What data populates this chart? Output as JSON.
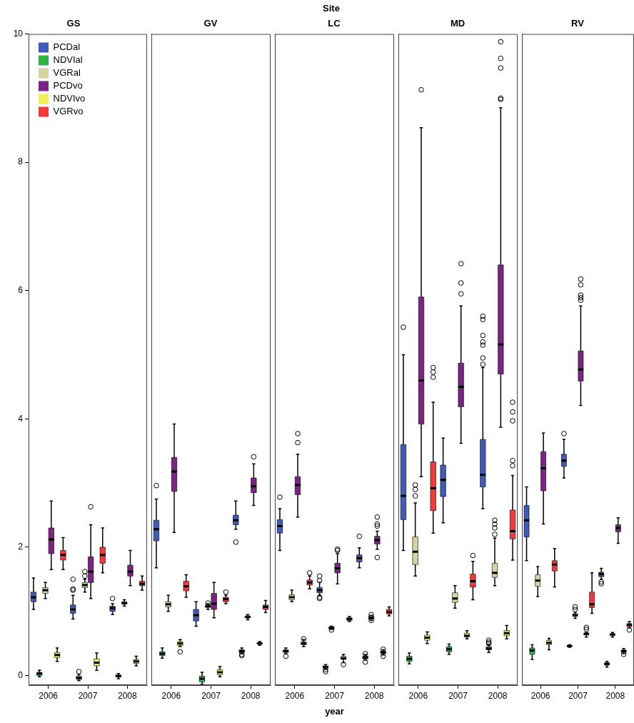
{
  "chart_data": [
    {
      "type": "box",
      "title": "GS",
      "annotations": [
        "Site"
      ],
      "categories": [
        "2006",
        "2007",
        "2008"
      ],
      "ylim": [
        -0.15,
        10
      ],
      "yticks": [
        0,
        2,
        4,
        6,
        8,
        10
      ],
      "legend": "top left",
      "grid": false,
      "series": [
        {
          "name": "PCDal",
          "color": "#3f5bb5",
          "boxes": [
            {
              "low": 1.03,
              "q1": 1.15,
              "median": 1.22,
              "q3": 1.3,
              "high": 1.52
            },
            {
              "low": 0.88,
              "q1": 0.97,
              "median": 1.03,
              "q3": 1.1,
              "high": 1.25,
              "outliers": [
                1.33,
                1.35,
                1.5
              ]
            },
            {
              "low": 0.95,
              "q1": 1.0,
              "median": 1.05,
              "q3": 1.08,
              "high": 1.12,
              "outliers": [
                1.2
              ]
            }
          ]
        },
        {
          "name": "NDVIal",
          "color": "#2eb34b",
          "boxes": [
            {
              "low": -0.02,
              "q1": 0.0,
              "median": 0.03,
              "q3": 0.05,
              "high": 0.08
            },
            {
              "low": -0.08,
              "q1": -0.06,
              "median": -0.04,
              "q3": -0.01,
              "high": 0.02,
              "outliers": [
                0.06
              ]
            },
            {
              "low": -0.05,
              "q1": -0.02,
              "median": -0.01,
              "q3": 0.01,
              "high": 0.03
            }
          ]
        },
        {
          "name": "VGRal",
          "color": "#d8d2a0",
          "boxes": [
            {
              "low": 1.2,
              "q1": 1.28,
              "median": 1.33,
              "q3": 1.37,
              "high": 1.45
            },
            {
              "low": 1.3,
              "q1": 1.37,
              "median": 1.41,
              "q3": 1.45,
              "high": 1.5,
              "outliers": [
                1.55,
                1.62
              ]
            },
            {
              "low": 1.08,
              "q1": 1.11,
              "median": 1.13,
              "q3": 1.15,
              "high": 1.18
            }
          ]
        },
        {
          "name": "PCDvo",
          "color": "#7b2582",
          "boxes": [
            {
              "low": 1.65,
              "q1": 1.9,
              "median": 2.12,
              "q3": 2.3,
              "high": 2.72
            },
            {
              "low": 1.2,
              "q1": 1.45,
              "median": 1.62,
              "q3": 1.85,
              "high": 2.35,
              "outliers": [
                2.63
              ]
            },
            {
              "low": 1.4,
              "q1": 1.55,
              "median": 1.62,
              "q3": 1.72,
              "high": 1.95
            }
          ]
        },
        {
          "name": "NDVIvo",
          "color": "#f3ee5c",
          "boxes": [
            {
              "low": 0.22,
              "q1": 0.28,
              "median": 0.32,
              "q3": 0.36,
              "high": 0.43
            },
            {
              "low": 0.08,
              "q1": 0.15,
              "median": 0.2,
              "q3": 0.26,
              "high": 0.35
            },
            {
              "low": 0.15,
              "q1": 0.19,
              "median": 0.22,
              "q3": 0.25,
              "high": 0.3
            }
          ]
        },
        {
          "name": "VGRvo",
          "color": "#f03b3b",
          "boxes": [
            {
              "low": 1.65,
              "q1": 1.8,
              "median": 1.88,
              "q3": 1.95,
              "high": 2.15
            },
            {
              "low": 1.6,
              "q1": 1.75,
              "median": 1.88,
              "q3": 2.0,
              "high": 2.3
            },
            {
              "low": 1.33,
              "q1": 1.4,
              "median": 1.43,
              "q3": 1.47,
              "high": 1.55
            }
          ]
        }
      ]
    },
    {
      "type": "box",
      "title": "GV",
      "categories": [
        "2006",
        "2007",
        "2008"
      ],
      "ylim": [
        -0.15,
        10
      ],
      "tick_labels": "x",
      "grid": false,
      "series": [
        {
          "color": "#3f5bb5",
          "boxes": [
            {
              "low": 1.68,
              "q1": 2.1,
              "median": 2.28,
              "q3": 2.42,
              "high": 2.75,
              "outliers": [
                2.96
              ]
            },
            {
              "low": 0.77,
              "q1": 0.85,
              "median": 0.94,
              "q3": 1.03,
              "high": 1.15
            },
            {
              "low": 2.28,
              "q1": 2.35,
              "median": 2.42,
              "q3": 2.5,
              "high": 2.72,
              "outliers": [
                2.08
              ]
            }
          ]
        },
        {
          "color": "#2eb34b",
          "boxes": [
            {
              "low": 0.27,
              "q1": 0.31,
              "median": 0.34,
              "q3": 0.37,
              "high": 0.43
            },
            {
              "low": -0.14,
              "q1": -0.1,
              "median": -0.05,
              "q3": -0.01,
              "high": 0.05
            },
            {
              "low": 0.34,
              "q1": 0.36,
              "median": 0.38,
              "q3": 0.4,
              "high": 0.43,
              "outliers": [
                0.31,
                0.33
              ]
            }
          ]
        },
        {
          "color": "#d8d2a0",
          "boxes": [
            {
              "low": 1.0,
              "q1": 1.07,
              "median": 1.11,
              "q3": 1.15,
              "high": 1.25
            },
            {
              "low": 1.03,
              "q1": 1.06,
              "median": 1.08,
              "q3": 1.1,
              "high": 1.12,
              "outliers": [
                1.13
              ]
            },
            {
              "low": 0.87,
              "q1": 0.9,
              "median": 0.91,
              "q3": 0.93,
              "high": 0.95
            }
          ]
        },
        {
          "color": "#7b2582",
          "boxes": [
            {
              "low": 2.23,
              "q1": 2.87,
              "median": 3.18,
              "q3": 3.4,
              "high": 3.92
            },
            {
              "low": 0.9,
              "q1": 1.03,
              "median": 1.12,
              "q3": 1.28,
              "high": 1.45
            },
            {
              "low": 2.65,
              "q1": 2.85,
              "median": 2.95,
              "q3": 3.08,
              "high": 3.3,
              "outliers": [
                3.41
              ]
            }
          ]
        },
        {
          "color": "#f3ee5c",
          "boxes": [
            {
              "low": 0.45,
              "q1": 0.47,
              "median": 0.5,
              "q3": 0.53,
              "high": 0.56,
              "outliers": [
                0.37
              ]
            },
            {
              "low": -0.02,
              "q1": 0.01,
              "median": 0.05,
              "q3": 0.09,
              "high": 0.14
            },
            {
              "low": 0.47,
              "q1": 0.49,
              "median": 0.5,
              "q3": 0.51,
              "high": 0.53
            }
          ]
        },
        {
          "color": "#f03b3b",
          "boxes": [
            {
              "low": 1.22,
              "q1": 1.32,
              "median": 1.39,
              "q3": 1.47,
              "high": 1.57
            },
            {
              "low": 1.12,
              "q1": 1.15,
              "median": 1.19,
              "q3": 1.22,
              "high": 1.25,
              "outliers": [
                1.3
              ]
            },
            {
              "low": 0.98,
              "q1": 1.03,
              "median": 1.07,
              "q3": 1.1,
              "high": 1.17
            }
          ]
        }
      ]
    },
    {
      "type": "box",
      "title": "LC",
      "xlabel": "year",
      "categories": [
        "2006",
        "2007",
        "2008"
      ],
      "ylim": [
        -0.15,
        10
      ],
      "tick_labels": "x",
      "grid": false,
      "series": [
        {
          "color": "#3f5bb5",
          "boxes": [
            {
              "low": 1.95,
              "q1": 2.22,
              "median": 2.33,
              "q3": 2.43,
              "high": 2.6,
              "outliers": [
                2.78
              ]
            },
            {
              "low": 1.25,
              "q1": 1.29,
              "median": 1.33,
              "q3": 1.37,
              "high": 1.45,
              "outliers": [
                1.2,
                1.22,
                1.48,
                1.55
              ]
            },
            {
              "low": 1.68,
              "q1": 1.77,
              "median": 1.83,
              "q3": 1.88,
              "high": 1.99,
              "outliers": [
                2.17
              ]
            }
          ]
        },
        {
          "color": "#2eb34b",
          "boxes": [
            {
              "low": 0.34,
              "q1": 0.36,
              "median": 0.38,
              "q3": 0.4,
              "high": 0.43,
              "outliers": [
                0.3
              ]
            },
            {
              "low": 0.1,
              "q1": 0.12,
              "median": 0.13,
              "q3": 0.15,
              "high": 0.17,
              "outliers": [
                0.06,
                0.09
              ]
            },
            {
              "low": 0.24,
              "q1": 0.26,
              "median": 0.28,
              "q3": 0.3,
              "high": 0.33,
              "outliers": [
                0.21,
                0.34
              ]
            }
          ]
        },
        {
          "color": "#d8d2a0",
          "boxes": [
            {
              "low": 1.15,
              "q1": 1.18,
              "median": 1.22,
              "q3": 1.26,
              "high": 1.33
            },
            {
              "low": 0.72,
              "q1": 0.73,
              "median": 0.74,
              "q3": 0.76,
              "high": 0.77,
              "outliers": [
                0.71
              ]
            },
            {
              "low": 0.86,
              "q1": 0.88,
              "median": 0.9,
              "q3": 0.93,
              "high": 0.94,
              "outliers": [
                0.86,
                0.95
              ]
            }
          ]
        },
        {
          "color": "#7b2582",
          "boxes": [
            {
              "low": 2.47,
              "q1": 2.82,
              "median": 2.97,
              "q3": 3.1,
              "high": 3.45,
              "outliers": [
                3.63,
                3.77
              ]
            },
            {
              "low": 1.43,
              "q1": 1.6,
              "median": 1.67,
              "q3": 1.75,
              "high": 1.9,
              "outliers": [
                1.95,
                1.97
              ]
            },
            {
              "low": 1.97,
              "q1": 2.05,
              "median": 2.11,
              "q3": 2.17,
              "high": 2.25,
              "outliers": [
                1.84,
                2.33,
                2.36,
                2.47
              ]
            }
          ]
        },
        {
          "color": "#f3ee5c",
          "boxes": [
            {
              "low": 0.45,
              "q1": 0.48,
              "median": 0.5,
              "q3": 0.52,
              "high": 0.56,
              "outliers": [
                0.57
              ]
            },
            {
              "low": 0.2,
              "q1": 0.25,
              "median": 0.27,
              "q3": 0.3,
              "high": 0.33,
              "outliers": [
                0.17
              ]
            },
            {
              "low": 0.32,
              "q1": 0.34,
              "median": 0.36,
              "q3": 0.38,
              "high": 0.4,
              "outliers": [
                0.3,
                0.41
              ]
            }
          ]
        },
        {
          "color": "#f03b3b",
          "boxes": [
            {
              "low": 1.35,
              "q1": 1.41,
              "median": 1.45,
              "q3": 1.49,
              "high": 1.55,
              "outliers": [
                1.6
              ]
            },
            {
              "low": 0.84,
              "q1": 0.86,
              "median": 0.88,
              "q3": 0.9,
              "high": 0.92
            },
            {
              "low": 0.93,
              "q1": 0.96,
              "median": 0.99,
              "q3": 1.03,
              "high": 1.07
            }
          ]
        }
      ]
    },
    {
      "type": "box",
      "title": "MD",
      "categories": [
        "2006",
        "2007",
        "2008"
      ],
      "ylim": [
        -0.15,
        10
      ],
      "tick_labels": "x",
      "grid": false,
      "series": [
        {
          "color": "#3f5bb5",
          "boxes": [
            {
              "low": 1.95,
              "q1": 2.43,
              "median": 2.8,
              "q3": 3.6,
              "high": 5.0,
              "outliers": [
                5.43
              ]
            },
            {
              "low": 2.38,
              "q1": 2.79,
              "median": 3.05,
              "q3": 3.28,
              "high": 3.7
            },
            {
              "low": 2.6,
              "q1": 2.94,
              "median": 3.13,
              "q3": 3.68,
              "high": 4.8,
              "outliers": [
                4.85,
                4.95,
                5.15,
                5.2,
                5.3,
                5.55,
                5.6
              ]
            }
          ]
        },
        {
          "color": "#2eb34b",
          "boxes": [
            {
              "low": 0.18,
              "q1": 0.22,
              "median": 0.26,
              "q3": 0.3,
              "high": 0.35
            },
            {
              "low": 0.33,
              "q1": 0.37,
              "median": 0.41,
              "q3": 0.45,
              "high": 0.49
            },
            {
              "low": 0.36,
              "q1": 0.4,
              "median": 0.42,
              "q3": 0.45,
              "high": 0.48,
              "outliers": [
                0.5,
                0.52,
                0.55
              ]
            }
          ]
        },
        {
          "color": "#d8d2a0",
          "boxes": [
            {
              "low": 1.55,
              "q1": 1.73,
              "median": 1.93,
              "q3": 2.16,
              "high": 2.69,
              "outliers": [
                2.8,
                2.9,
                2.97
              ]
            },
            {
              "low": 1.05,
              "q1": 1.14,
              "median": 1.2,
              "q3": 1.29,
              "high": 1.4
            },
            {
              "low": 1.4,
              "q1": 1.53,
              "median": 1.6,
              "q3": 1.75,
              "high": 2.14,
              "outliers": [
                2.2,
                2.3,
                2.36,
                2.42
              ]
            }
          ]
        },
        {
          "color": "#7b2582",
          "boxes": [
            {
              "low": 3.1,
              "q1": 3.92,
              "median": 4.6,
              "q3": 5.9,
              "high": 8.54,
              "outliers": [
                9.13
              ]
            },
            {
              "low": 3.62,
              "q1": 4.19,
              "median": 4.5,
              "q3": 4.87,
              "high": 5.76,
              "outliers": [
                5.95,
                6.12,
                6.42
              ]
            },
            {
              "low": 3.87,
              "q1": 4.7,
              "median": 5.16,
              "q3": 6.4,
              "high": 8.85,
              "outliers": [
                8.98,
                9.0,
                9.47,
                9.62,
                9.88
              ]
            }
          ]
        },
        {
          "color": "#f3ee5c",
          "boxes": [
            {
              "low": 0.5,
              "q1": 0.55,
              "median": 0.59,
              "q3": 0.63,
              "high": 0.68
            },
            {
              "low": 0.57,
              "q1": 0.6,
              "median": 0.62,
              "q3": 0.66,
              "high": 0.7
            },
            {
              "low": 0.57,
              "q1": 0.62,
              "median": 0.66,
              "q3": 0.7,
              "high": 0.78
            }
          ]
        },
        {
          "color": "#f03b3b",
          "boxes": [
            {
              "low": 2.22,
              "q1": 2.57,
              "median": 2.92,
              "q3": 3.33,
              "high": 4.26,
              "outliers": [
                4.65,
                4.73,
                4.8
              ]
            },
            {
              "low": 1.18,
              "q1": 1.38,
              "median": 1.47,
              "q3": 1.58,
              "high": 1.78,
              "outliers": [
                1.87
              ]
            },
            {
              "low": 1.8,
              "q1": 2.13,
              "median": 2.25,
              "q3": 2.58,
              "high": 3.12,
              "outliers": [
                3.27,
                3.35,
                3.97,
                4.11,
                4.26
              ]
            }
          ]
        }
      ]
    },
    {
      "type": "box",
      "title": "RV",
      "categories": [
        "2006",
        "2007",
        "2008"
      ],
      "ylim": [
        -0.15,
        10
      ],
      "tick_labels": "x",
      "grid": false,
      "series": [
        {
          "color": "#3f5bb5",
          "boxes": [
            {
              "low": 1.79,
              "q1": 2.16,
              "median": 2.42,
              "q3": 2.65,
              "high": 2.94
            },
            {
              "low": 3.08,
              "q1": 3.26,
              "median": 3.35,
              "q3": 3.45,
              "high": 3.68,
              "outliers": [
                3.77
              ]
            },
            {
              "low": 1.5,
              "q1": 1.54,
              "median": 1.58,
              "q3": 1.61,
              "high": 1.67,
              "outliers": [
                1.43,
                1.46
              ]
            }
          ]
        },
        {
          "color": "#2eb34b",
          "boxes": [
            {
              "low": 0.25,
              "q1": 0.33,
              "median": 0.39,
              "q3": 0.43,
              "high": 0.48
            },
            {
              "low": 0.44,
              "q1": 0.45,
              "median": 0.46,
              "q3": 0.47,
              "high": 0.48
            },
            {
              "low": 0.13,
              "q1": 0.16,
              "median": 0.18,
              "q3": 0.2,
              "high": 0.22
            }
          ]
        },
        {
          "color": "#d8d2a0",
          "boxes": [
            {
              "low": 1.23,
              "q1": 1.39,
              "median": 1.48,
              "q3": 1.57,
              "high": 1.7
            },
            {
              "low": 0.89,
              "q1": 0.92,
              "median": 0.94,
              "q3": 0.96,
              "high": 0.98,
              "outliers": [
                1.03,
                1.07
              ]
            },
            {
              "low": 0.6,
              "q1": 0.62,
              "median": 0.64,
              "q3": 0.65,
              "high": 0.67
            }
          ]
        },
        {
          "color": "#7b2582",
          "boxes": [
            {
              "low": 2.36,
              "q1": 2.88,
              "median": 3.23,
              "q3": 3.49,
              "high": 3.78
            },
            {
              "low": 4.21,
              "q1": 4.59,
              "median": 4.77,
              "q3": 5.06,
              "high": 5.76,
              "outliers": [
                5.85,
                5.89,
                5.93,
                6.09,
                6.18
              ]
            },
            {
              "low": 2.06,
              "q1": 2.24,
              "median": 2.3,
              "q3": 2.35,
              "high": 2.46
            }
          ]
        },
        {
          "color": "#f3ee5c",
          "boxes": [
            {
              "low": 0.4,
              "q1": 0.48,
              "median": 0.51,
              "q3": 0.55,
              "high": 0.58
            },
            {
              "low": 0.6,
              "q1": 0.63,
              "median": 0.65,
              "q3": 0.66,
              "high": 0.67,
              "outliers": [
                0.72,
                0.75
              ]
            },
            {
              "low": 0.34,
              "q1": 0.36,
              "median": 0.38,
              "q3": 0.4,
              "high": 0.42,
              "outliers": [
                0.33
              ]
            }
          ]
        },
        {
          "color": "#f03b3b",
          "boxes": [
            {
              "low": 1.38,
              "q1": 1.63,
              "median": 1.73,
              "q3": 1.79,
              "high": 1.98
            },
            {
              "low": 0.97,
              "q1": 1.06,
              "median": 1.11,
              "q3": 1.3,
              "high": 1.6
            },
            {
              "low": 0.74,
              "q1": 0.76,
              "median": 0.79,
              "q3": 0.81,
              "high": 0.84,
              "outliers": [
                0.71
              ]
            }
          ]
        }
      ]
    }
  ]
}
